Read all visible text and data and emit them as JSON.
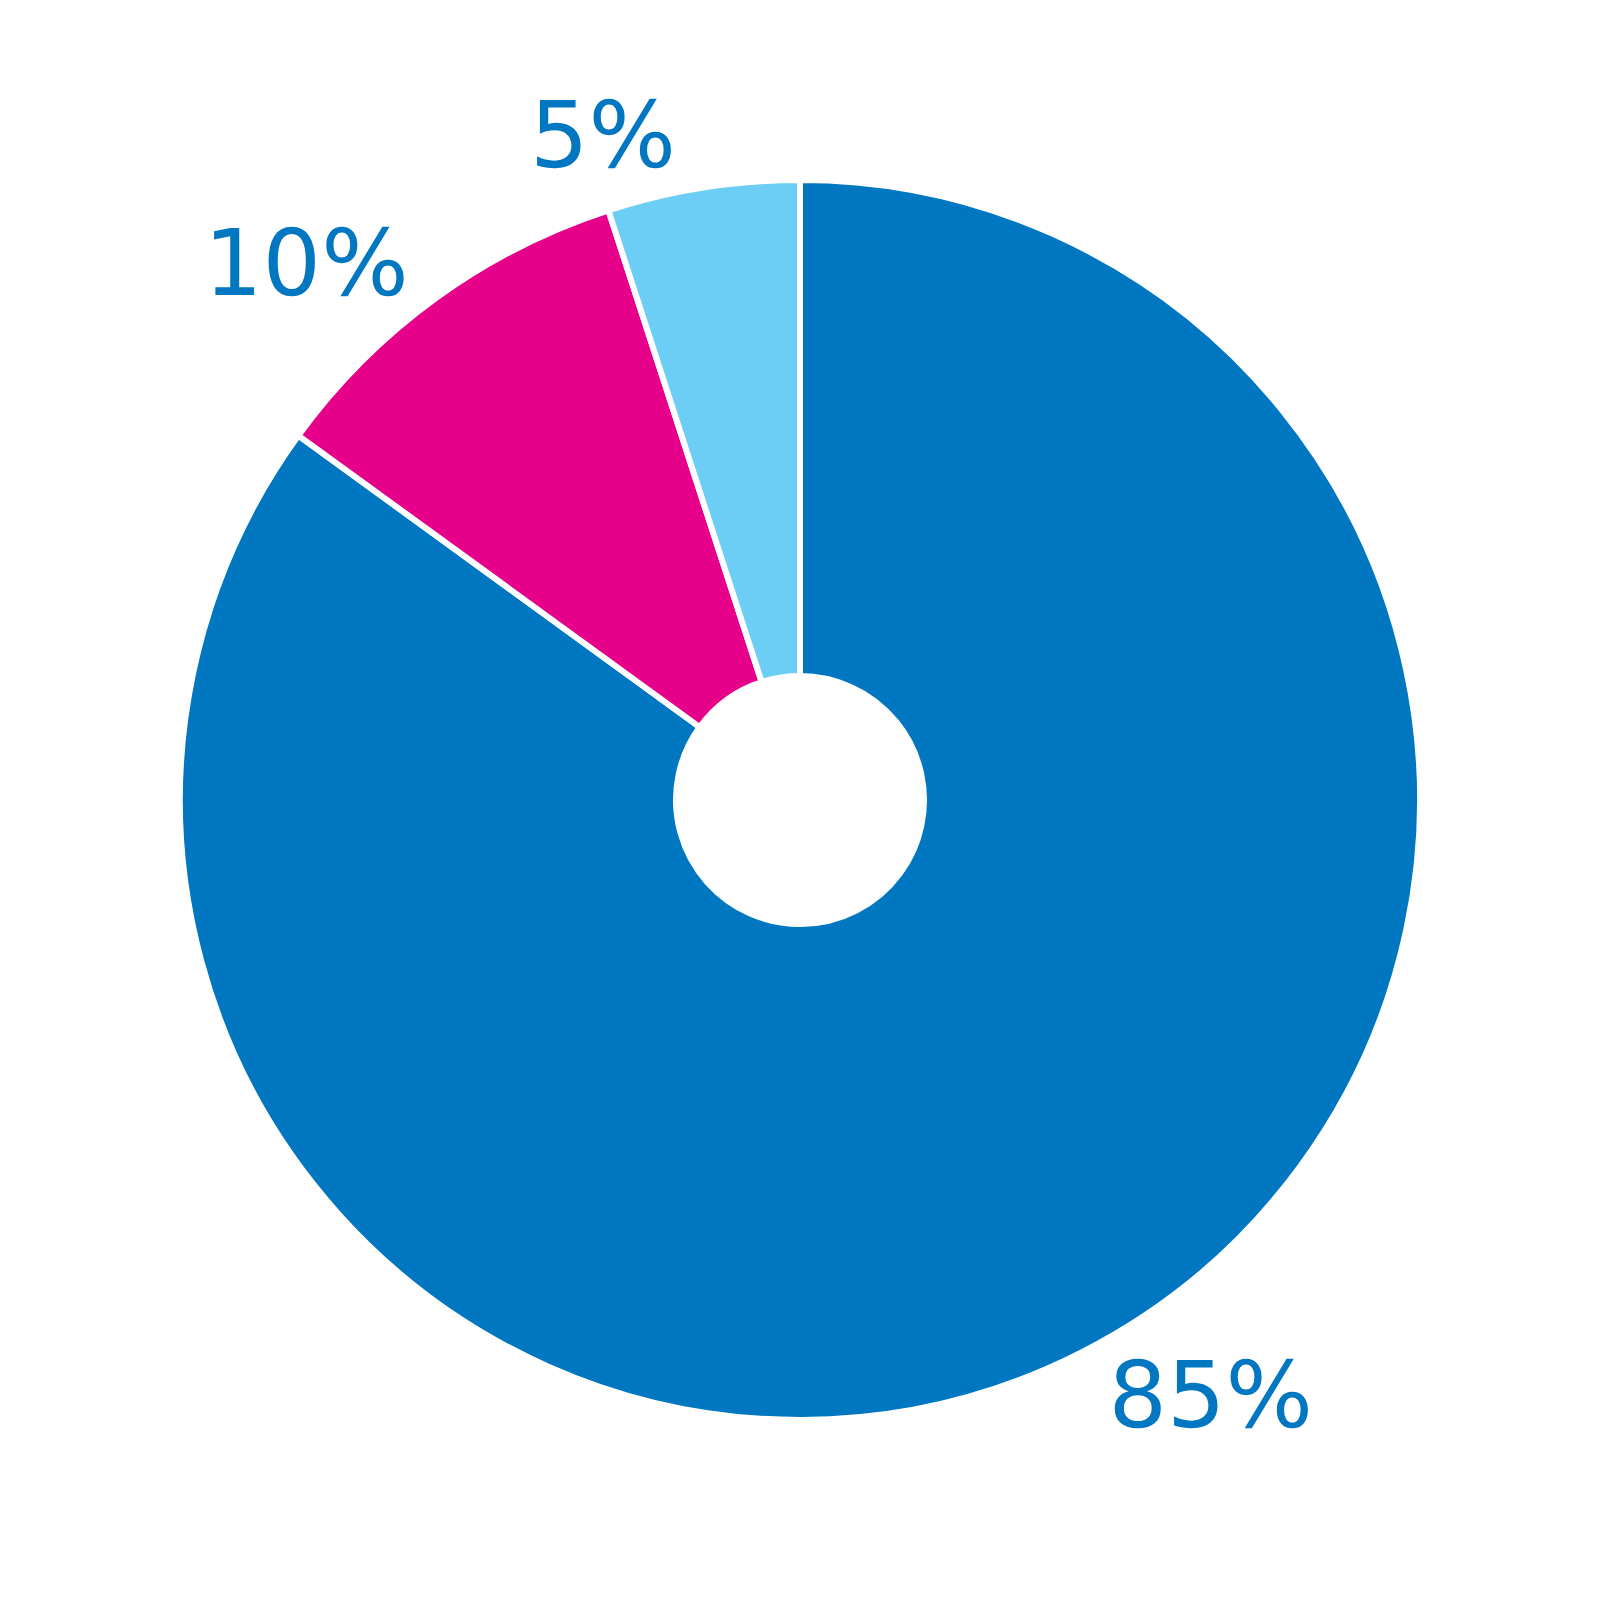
{
  "chart_data": {
    "type": "donut",
    "categories": [
      null,
      null,
      null
    ],
    "values": [
      85,
      10,
      5
    ],
    "colors": [
      "#0077c0",
      "#e6008a",
      "#6ccdf5"
    ],
    "value_labels": [
      "85%",
      "10%",
      "5%"
    ]
  }
}
